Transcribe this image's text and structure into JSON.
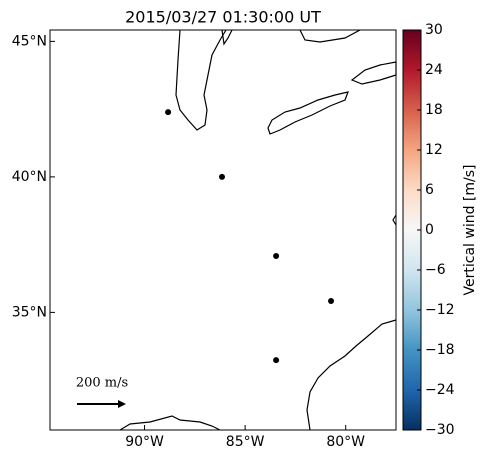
{
  "chart_data": {
    "type": "scatter",
    "title": "2015/03/27 01:30:00 UT",
    "x": [
      -88.83,
      -86.15,
      -83.46,
      -80.73,
      -83.46
    ],
    "y": [
      42.39,
      40.0,
      37.08,
      35.42,
      33.24
    ],
    "color": "#000000",
    "xlim": [
      -94.7,
      -77.5
    ],
    "ylim": [
      30.66,
      45.42
    ],
    "xticks": [
      {
        "value": -90,
        "label": "90°W"
      },
      {
        "value": -85,
        "label": "85°W"
      },
      {
        "value": -80,
        "label": "80°W"
      }
    ],
    "yticks": [
      {
        "value": 35,
        "label": "35°N"
      },
      {
        "value": 40,
        "label": "40°N"
      },
      {
        "value": 45,
        "label": "45°N"
      }
    ],
    "colorbar": {
      "label": "Vertical wind [m/s]",
      "lim": [
        -30,
        30
      ],
      "ticks": [
        {
          "value": -30,
          "label": "−30"
        },
        {
          "value": -24,
          "label": "−24"
        },
        {
          "value": -18,
          "label": "−18"
        },
        {
          "value": -12,
          "label": "−12"
        },
        {
          "value": -6,
          "label": "−6"
        },
        0,
        6,
        12,
        18,
        24,
        30
      ]
    },
    "reference_arrow": "200 m/s"
  }
}
